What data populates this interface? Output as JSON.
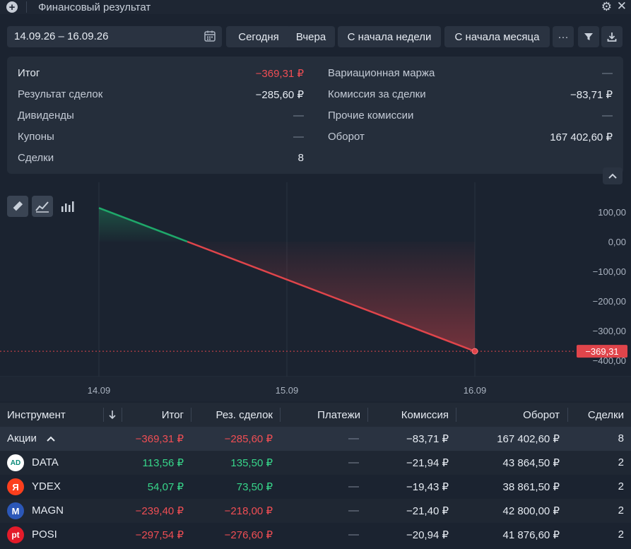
{
  "window": {
    "title": "Финансовый результат"
  },
  "toolbar": {
    "date_range": "14.09.26 – 16.09.26",
    "btn_today": "Сегодня",
    "btn_yesterday": "Вчера",
    "btn_week": "С начала недели",
    "btn_month": "С начала месяца",
    "btn_more": "···"
  },
  "summary": {
    "left": [
      {
        "label": "Итог",
        "value": "−369,31 ₽",
        "status": "neg"
      },
      {
        "label": "Результат сделок",
        "value": "−285,60 ₽",
        "status": "normal"
      },
      {
        "label": "Дивиденды",
        "value": "—",
        "status": "dim"
      },
      {
        "label": "Купоны",
        "value": "—",
        "status": "dim"
      },
      {
        "label": "Сделки",
        "value": "8",
        "status": "normal"
      }
    ],
    "right": [
      {
        "label": "Вариационная маржа",
        "value": "—",
        "status": "dim"
      },
      {
        "label": "Комиссия за сделки",
        "value": "−83,71 ₽",
        "status": "normal"
      },
      {
        "label": "Прочие комиссии",
        "value": "—",
        "status": "dim"
      },
      {
        "label": "Оборот",
        "value": "167 402,60 ₽",
        "status": "normal"
      }
    ]
  },
  "chart_data": {
    "type": "line",
    "x": [
      "14.09",
      "15.09",
      "16.09"
    ],
    "series": [
      {
        "values": [
          113.56,
          null,
          -369.31
        ]
      }
    ],
    "zero_cross_x": 0.46,
    "y_ticks": [
      "100,00",
      "0,00",
      "−100,00",
      "−200,00",
      "−300,00",
      "−400,00"
    ],
    "y_tick_values": [
      100,
      0,
      -100,
      -200,
      -300,
      -400
    ],
    "ylim": [
      -450,
      150
    ],
    "last_value_label": "−369,31",
    "colors": {
      "positive": "#1fa86a",
      "negative": "#e0454b"
    }
  },
  "table": {
    "columns": [
      "Инструмент",
      "Итог",
      "Рез. сделок",
      "Платежи",
      "Комиссия",
      "Оборот",
      "Сделки"
    ],
    "group": {
      "name": "Акции",
      "total": "−369,31 ₽",
      "deals_result": "−285,60 ₽",
      "payments": "—",
      "commission": "−83,71 ₽",
      "turnover": "167 402,60 ₽",
      "count": "8"
    },
    "rows": [
      {
        "ticker": "DATA",
        "logo": "AD",
        "logo_color": "#ffffff",
        "total": "113,56 ₽",
        "total_status": "pos",
        "deals_result": "135,50 ₽",
        "deals_status": "pos",
        "payments": "—",
        "commission": "−21,94 ₽",
        "turnover": "43 864,50 ₽",
        "count": "2"
      },
      {
        "ticker": "YDEX",
        "logo": "Я",
        "logo_color": "#fc3f1d",
        "total": "54,07 ₽",
        "total_status": "pos",
        "deals_result": "73,50 ₽",
        "deals_status": "pos",
        "payments": "—",
        "commission": "−19,43 ₽",
        "turnover": "38 861,50 ₽",
        "count": "2"
      },
      {
        "ticker": "MAGN",
        "logo": "M",
        "logo_color": "#2b57b8",
        "total": "−239,40 ₽",
        "total_status": "neg",
        "deals_result": "−218,00 ₽",
        "deals_status": "neg",
        "payments": "—",
        "commission": "−21,40 ₽",
        "turnover": "42 800,00 ₽",
        "count": "2"
      },
      {
        "ticker": "POSI",
        "logo": "pt",
        "logo_color": "#e31b2a",
        "total": "−297,54 ₽",
        "total_status": "neg",
        "deals_result": "−276,60 ₽",
        "deals_status": "neg",
        "payments": "—",
        "commission": "−20,94 ₽",
        "turnover": "41 876,60 ₽",
        "count": "2"
      }
    ]
  }
}
